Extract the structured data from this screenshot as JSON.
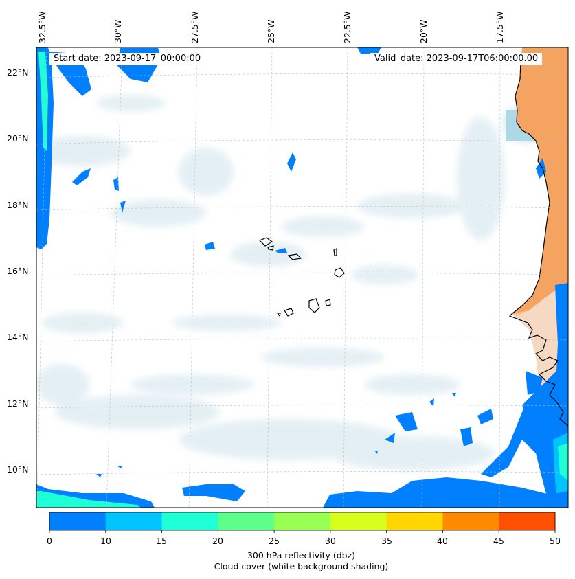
{
  "map": {
    "start_date": "Start date: 2023-09-17_00:00:00",
    "valid_date": "Valid_date: 2023-09-17T06:00:00.00",
    "lon_labels": [
      "32.5°W",
      "30°W",
      "27.5°W",
      "25°W",
      "22.5°W",
      "20°W",
      "17.5°W"
    ],
    "lat_labels": [
      "22°N",
      "20°N",
      "18°N",
      "16°N",
      "14°N",
      "12°N",
      "10°N"
    ],
    "land_color": "#f4a460",
    "coastline_color": "#000000",
    "gridlines": "dashed light gray",
    "cloud_shading_color": "#cfe3ec"
  },
  "colorbar": {
    "ticks": [
      "0",
      "10",
      "15",
      "20",
      "25",
      "30",
      "35",
      "40",
      "45",
      "50"
    ],
    "colors": [
      "#0080ff",
      "#00c4ff",
      "#1effd6",
      "#5cff8a",
      "#96ff52",
      "#d6ff1e",
      "#ffd600",
      "#ff8a00",
      "#ff4f00"
    ],
    "label_line1": "300 hPa reflectivity (dbz)",
    "label_line2": "Cloud cover (white background shading)"
  }
}
